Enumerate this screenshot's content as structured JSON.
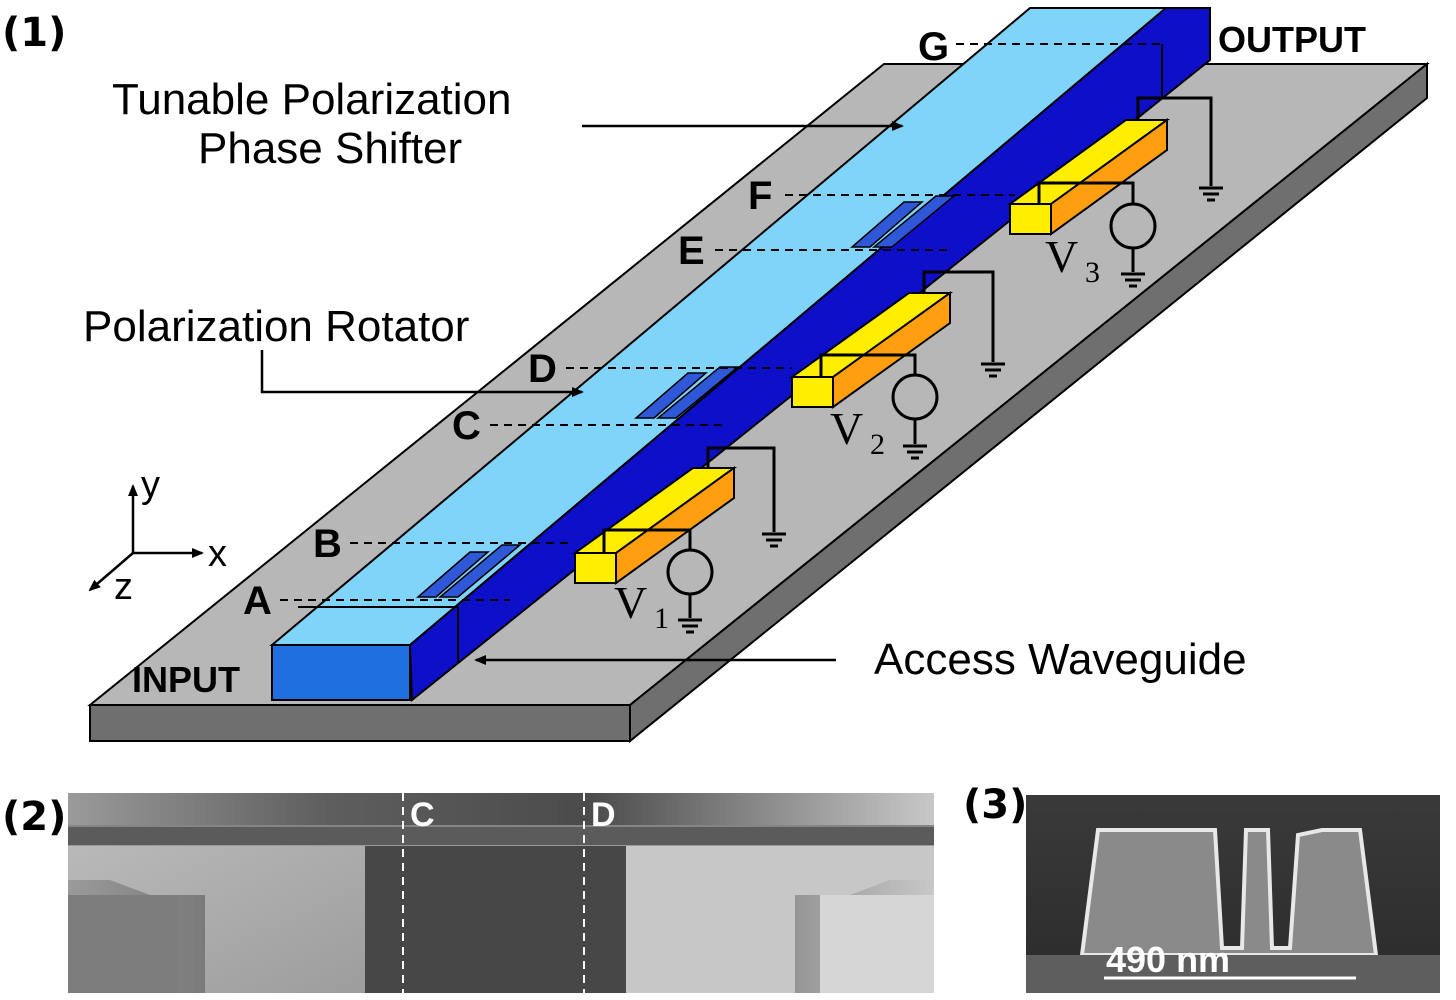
{
  "panel1": {
    "label": "(1)",
    "callouts": {
      "phase_shifter_line1": "Tunable Polarization",
      "phase_shifter_line2": "Phase Shifter",
      "rotator": "Polarization Rotator",
      "access_waveguide": "Access Waveguide"
    },
    "io": {
      "input": "INPUT",
      "output": "OUTPUT"
    },
    "points": [
      "A",
      "B",
      "C",
      "D",
      "E",
      "F",
      "G"
    ],
    "axes": {
      "y": "y",
      "x": "x",
      "z": "z"
    },
    "sources": [
      {
        "symbol": "V",
        "subscript": "1"
      },
      {
        "symbol": "V",
        "subscript": "2"
      },
      {
        "symbol": "V",
        "subscript": "3"
      }
    ],
    "colors": {
      "substrate_top": "#b7b7b7",
      "substrate_side": "#6f6f6f",
      "waveguide_top": "#80d4fa",
      "waveguide_side": "#0d10c8",
      "waveguide_front": "#1f6fe0",
      "electrode_top": "#ffee00",
      "electrode_side": "#ff9f10",
      "rotator_slot": "#2f58d8"
    }
  },
  "panel2": {
    "label": "(2)",
    "markers": [
      "C",
      "D"
    ]
  },
  "panel3": {
    "label": "(3)",
    "scale_bar": "490 nm"
  }
}
